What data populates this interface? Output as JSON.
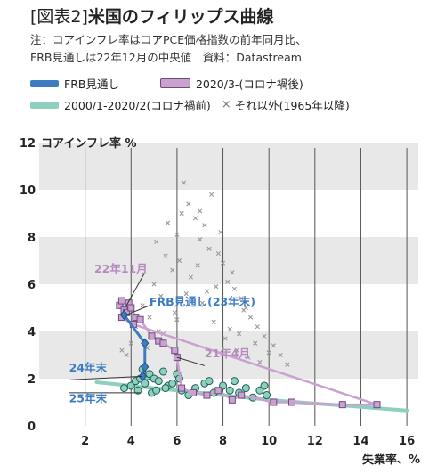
{
  "header": {
    "title_bracket": "[図表2]",
    "title_main": "米国のフィリップス曲線",
    "note_line1": "注：コアインフレ率はコアPCE価格指数の前年同月比、",
    "note_line2": "FRB見通しは22年12月の中央値　資料：Datastream"
  },
  "legend": {
    "frb": "FRB見通し",
    "post": "2020/3-(コロナ禍後)",
    "pre": "2000/1-2020/2(コロナ禍前)",
    "other": "それ以外(1965年以降)",
    "other_glyph": "×"
  },
  "colors": {
    "frb": "#3d7cc0",
    "post": "#c9a2cf",
    "post_edge": "#6e4b80",
    "pre": "#8ed0bf",
    "pre_edge": "#1e5e55",
    "other": "#9a9a9a",
    "band": "#e8e8e8"
  },
  "chart_data": {
    "type": "scatter",
    "ylabel": "コアインフレ率 %",
    "xlabel": "失業率、%",
    "xlim": [
      0,
      16.5
    ],
    "ylim": [
      0,
      12
    ],
    "xticks": [
      "2",
      "4",
      "6",
      "8",
      "10",
      "12",
      "14",
      "16"
    ],
    "yticks": [
      "0",
      "2",
      "4",
      "6",
      "8",
      "10",
      "12"
    ],
    "annotations": [
      {
        "text": "22年11月",
        "x": 2.4,
        "y": 6.5,
        "color": "#b58abd"
      },
      {
        "text": "FRB見通し(23年末)",
        "x": 4.8,
        "y": 5.1,
        "color": "#3d7cc0"
      },
      {
        "text": "21年4月",
        "x": 7.2,
        "y": 2.9,
        "color": "#b58abd"
      },
      {
        "text": "24年末",
        "x": 1.3,
        "y": 2.3,
        "color": "#3d7cc0"
      },
      {
        "text": "25年末",
        "x": 1.3,
        "y": 1.0,
        "color": "#3d7cc0"
      }
    ],
    "series": [
      {
        "name": "FRB見通し",
        "x": [
          3.7,
          4.6,
          4.6,
          4.5
        ],
        "y": [
          4.7,
          3.5,
          2.5,
          2.1
        ]
      },
      {
        "name": "2020/3-(コロナ禍後)",
        "x": [
          3.5,
          3.6,
          3.7,
          3.8,
          3.9,
          4.0,
          4.2,
          4.4,
          4.9,
          5.2,
          5.4,
          5.9,
          6.0,
          6.2,
          6.7,
          7.3,
          7.8,
          8.4,
          8.8,
          10.2,
          11.0,
          13.2,
          14.7,
          4.1,
          3.6
        ],
        "y": [
          5.1,
          5.3,
          4.9,
          4.8,
          5.2,
          5.0,
          4.6,
          4.5,
          3.8,
          3.6,
          3.5,
          3.2,
          2.9,
          1.6,
          1.4,
          1.3,
          1.5,
          1.1,
          1.3,
          1.0,
          1.0,
          0.9,
          0.9,
          4.3,
          4.6
        ]
      },
      {
        "name": "2000/1-2020/2(コロナ禍前)",
        "x": [
          3.7,
          4.0,
          4.2,
          4.4,
          4.6,
          4.7,
          4.8,
          5.0,
          5.2,
          5.4,
          5.6,
          5.8,
          6.0,
          6.2,
          6.5,
          6.8,
          7.2,
          7.6,
          8.0,
          8.3,
          8.7,
          9.0,
          9.3,
          9.6,
          9.9,
          4.3,
          4.9,
          5.5,
          6.1,
          7.4,
          8.5,
          9.8,
          4.5,
          5.1
        ],
        "y": [
          1.6,
          1.7,
          1.9,
          2.0,
          1.8,
          2.1,
          2.2,
          2.0,
          1.9,
          2.3,
          1.7,
          1.8,
          2.2,
          1.5,
          1.3,
          1.6,
          1.8,
          1.4,
          1.7,
          1.5,
          1.4,
          1.6,
          1.2,
          1.5,
          1.3,
          1.5,
          1.4,
          1.6,
          2.0,
          1.9,
          1.9,
          1.7,
          2.4,
          1.5
        ]
      },
      {
        "name": "それ以外(1965年以降)",
        "x": [
          3.6,
          3.8,
          4.0,
          4.2,
          4.5,
          4.8,
          5.0,
          5.3,
          5.5,
          5.8,
          6.0,
          6.2,
          6.5,
          6.8,
          7.0,
          7.2,
          7.5,
          7.8,
          8.0,
          8.2,
          8.5,
          8.8,
          9.0,
          9.2,
          9.5,
          9.8,
          10.2,
          10.5,
          10.8,
          5.1,
          5.6,
          6.1,
          6.6,
          7.1,
          7.6,
          8.1,
          8.6,
          9.1,
          5.4,
          5.9,
          6.4,
          6.9,
          7.4,
          7.9,
          8.4,
          8.9,
          9.4,
          6.3,
          7.0,
          7.7,
          8.3,
          9.6,
          4.7,
          5.2,
          6.0,
          7.3,
          8.7,
          10.0
        ],
        "y": [
          3.2,
          3.0,
          3.5,
          4.2,
          5.1,
          4.6,
          6.0,
          5.5,
          7.2,
          6.6,
          8.1,
          9.0,
          9.4,
          8.8,
          7.9,
          8.5,
          9.8,
          7.3,
          6.9,
          6.1,
          5.8,
          5.4,
          5.0,
          4.6,
          4.2,
          3.8,
          3.4,
          3.0,
          2.6,
          7.8,
          8.6,
          7.0,
          6.3,
          5.2,
          4.4,
          3.7,
          3.2,
          2.9,
          3.9,
          4.8,
          5.6,
          6.8,
          7.5,
          8.2,
          6.5,
          4.9,
          3.5,
          10.3,
          9.1,
          5.9,
          4.1,
          2.7,
          3.3,
          4.0,
          4.5,
          5.7,
          3.9,
          3.1
        ]
      }
    ],
    "pre_trend": {
      "x": [
        2.5,
        4,
        6,
        8,
        10,
        12,
        14,
        16
      ],
      "y": [
        1.85,
        1.7,
        1.5,
        1.3,
        1.1,
        0.95,
        0.8,
        0.65
      ]
    }
  }
}
